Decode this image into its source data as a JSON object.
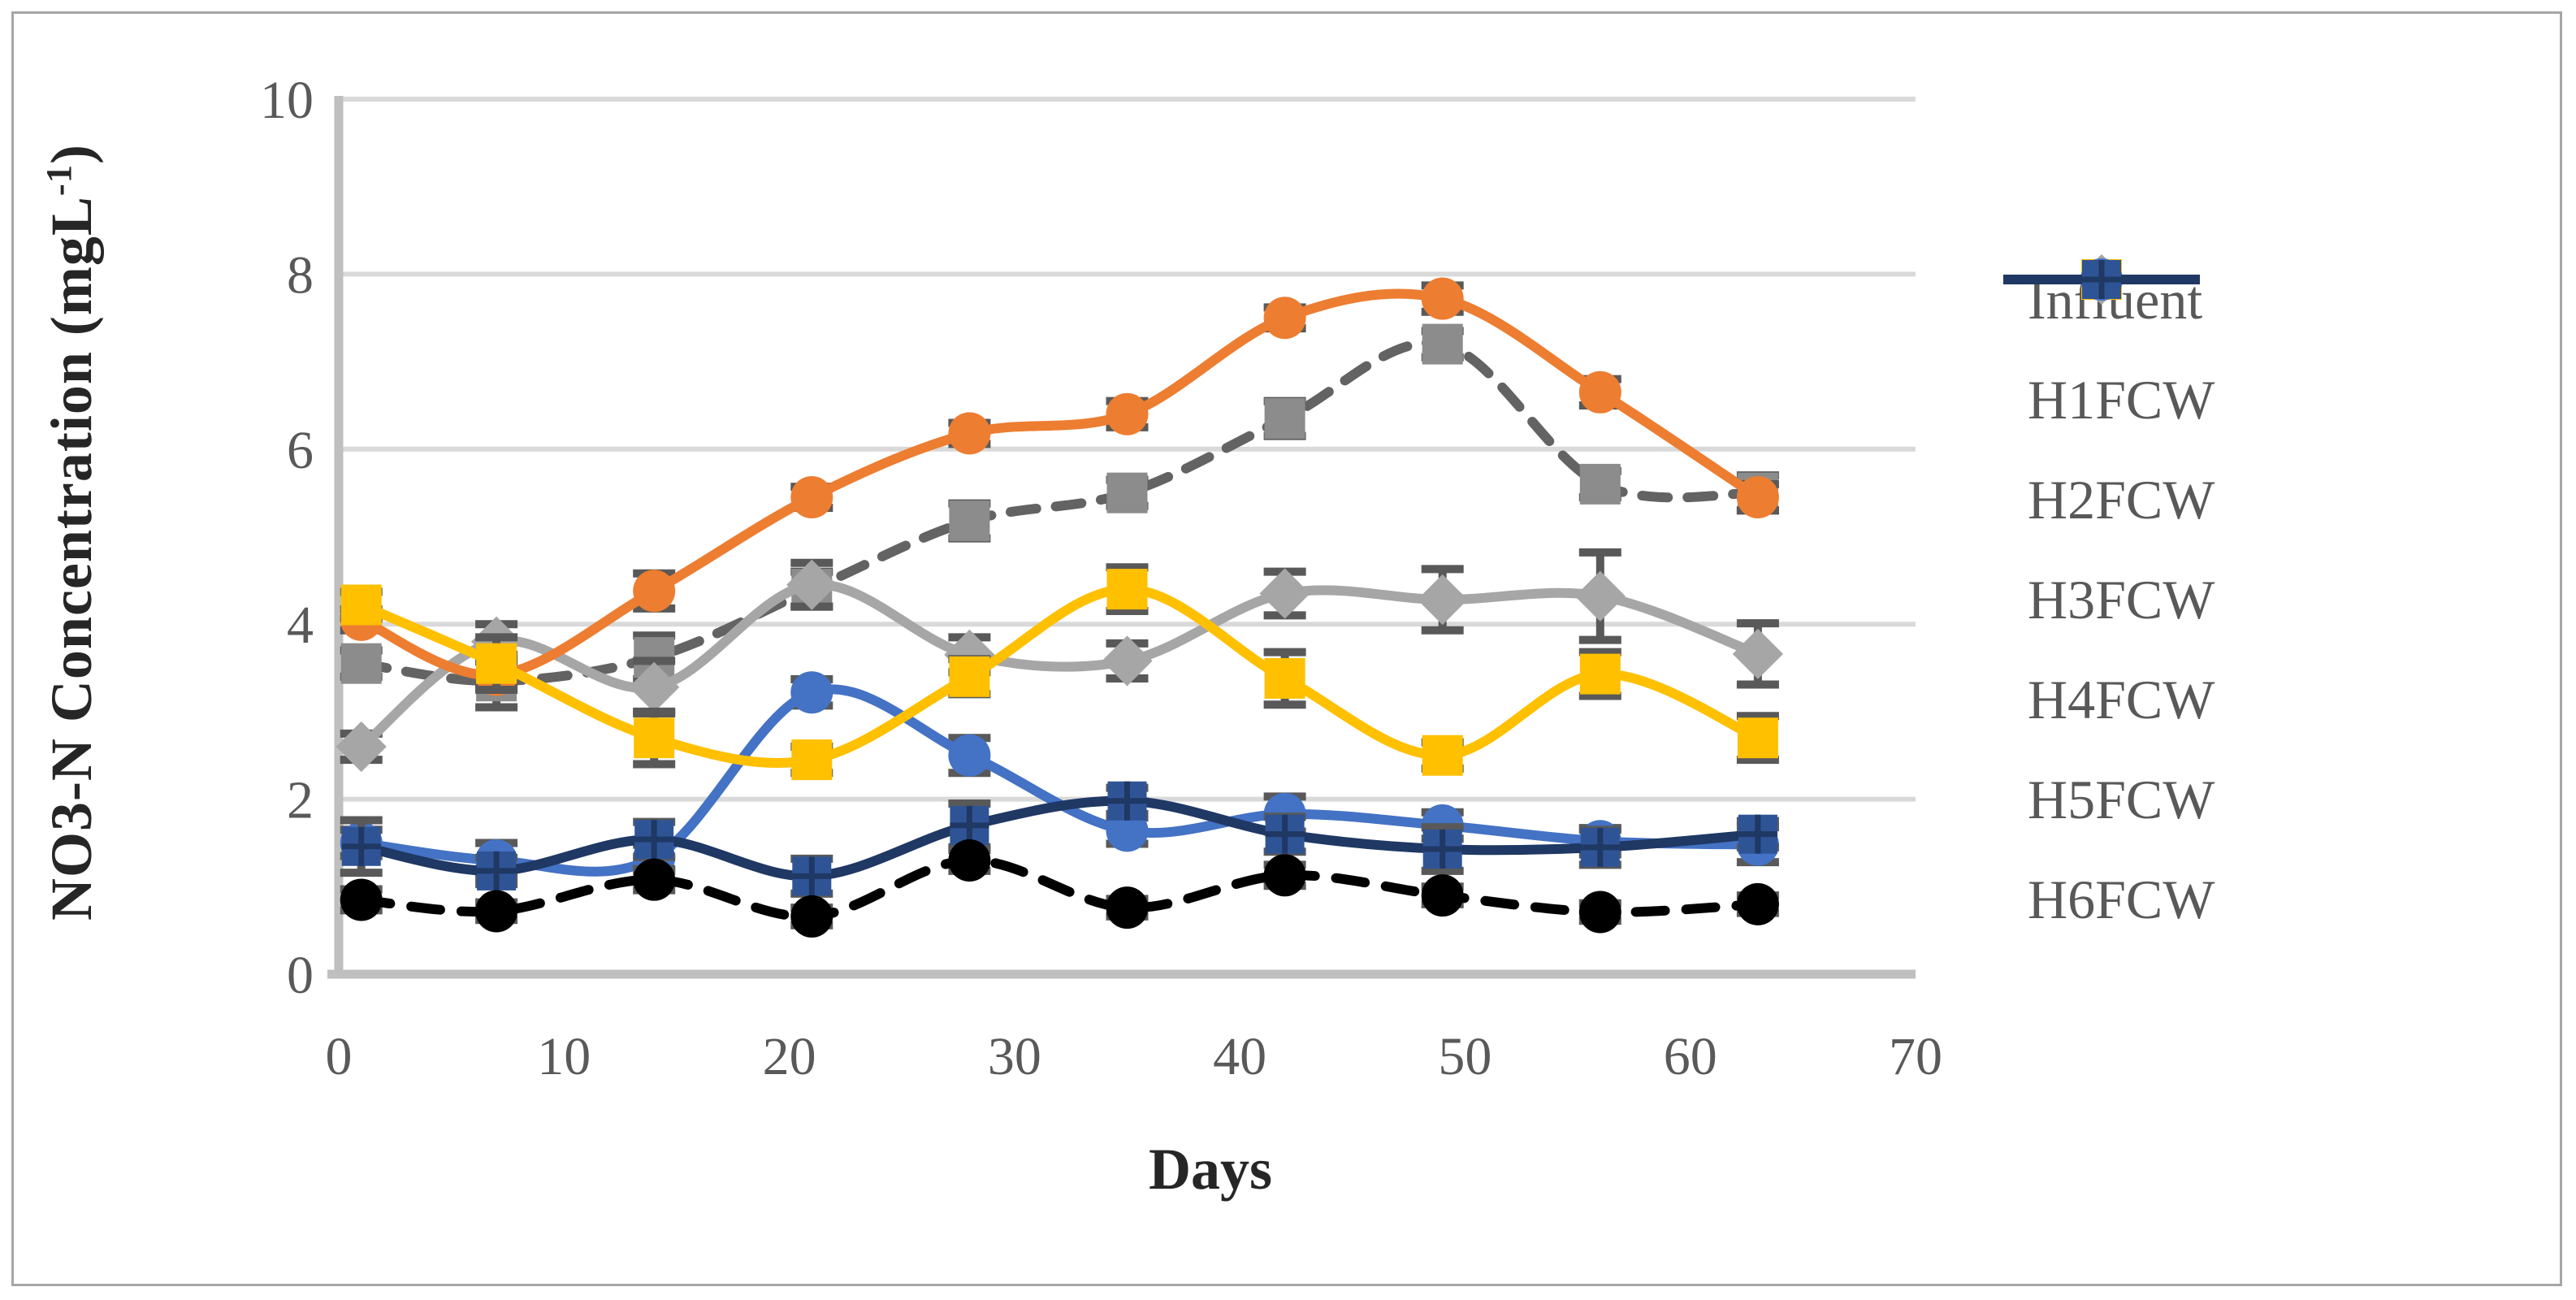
{
  "y_axis_title": {
    "main": "NO3-N Concentration (mgL",
    "sup": "-1",
    "end": ")"
  },
  "x_axis_title": "Days",
  "colors": {
    "grid": "#d9d9d9",
    "axis": "#bfbfbf",
    "error_bar": "#595959",
    "tick_text": "#595959",
    "legend_text": "#595959",
    "figure_border": "#a6a6a6",
    "background": "#ffffff"
  },
  "chart_data": {
    "type": "line",
    "title": "",
    "xlabel": "Days",
    "ylabel": "NO3-N Concentration (mgL-1)",
    "xlim": [
      0,
      70
    ],
    "ylim": [
      0,
      10
    ],
    "x_ticks": [
      0,
      10,
      20,
      30,
      40,
      50,
      60,
      70
    ],
    "y_ticks": [
      0,
      2,
      4,
      6,
      8,
      10
    ],
    "grid": "horizontal",
    "legend_position": "right",
    "x": [
      1,
      7,
      14,
      21,
      28,
      35,
      42,
      49,
      56,
      63
    ],
    "draw_order": [
      1,
      5,
      6,
      0,
      3,
      2,
      4
    ],
    "series": [
      {
        "name": "Influent",
        "color": "#000000",
        "marker_color": "#000000",
        "line_style": "dashed",
        "dash": "36 26",
        "marker": "circle",
        "values": [
          0.85,
          0.72,
          1.08,
          0.66,
          1.3,
          0.76,
          1.13,
          0.9,
          0.71,
          0.8
        ],
        "errors": [
          0.12,
          0.1,
          0.12,
          0.1,
          0.12,
          0.1,
          0.12,
          0.1,
          0.1,
          0.1
        ]
      },
      {
        "name": "H1FCW",
        "color": "#636363",
        "marker_color": "#8c8c8c",
        "line_style": "dashed",
        "dash": "32 24",
        "marker": "square",
        "values": [
          3.55,
          3.35,
          3.62,
          4.4,
          5.18,
          5.5,
          6.35,
          7.2,
          5.6,
          5.5
        ],
        "errors": [
          0.15,
          0.3,
          0.25,
          0.2,
          0.2,
          0.15,
          0.2,
          0.15,
          0.15,
          0.2
        ]
      },
      {
        "name": "H2FCW",
        "color": "#ed7d31",
        "marker_color": "#ed7d31",
        "line_style": "solid",
        "dash": "",
        "marker": "circle",
        "values": [
          4.05,
          3.42,
          4.38,
          5.45,
          6.18,
          6.4,
          7.5,
          7.72,
          6.65,
          5.45
        ],
        "errors": [
          0.12,
          0.15,
          0.2,
          0.12,
          0.12,
          0.15,
          0.12,
          0.15,
          0.15,
          0.15
        ]
      },
      {
        "name": "H3FCW",
        "color": "#a6a6a6",
        "marker_color": "#a6a6a6",
        "line_style": "solid",
        "dash": "",
        "marker": "diamond",
        "values": [
          2.6,
          3.8,
          3.28,
          4.45,
          3.65,
          3.58,
          4.35,
          4.28,
          4.32,
          3.66
        ],
        "errors": [
          0.15,
          0.2,
          0.3,
          0.25,
          0.2,
          0.2,
          0.25,
          0.35,
          0.5,
          0.35
        ]
      },
      {
        "name": "H4FCW",
        "color": "#ffc000",
        "marker_color": "#ffc000",
        "line_style": "solid",
        "dash": "",
        "marker": "square",
        "values": [
          4.22,
          3.55,
          2.7,
          2.45,
          3.4,
          4.4,
          3.38,
          2.5,
          3.43,
          2.7
        ],
        "errors": [
          0.15,
          0.3,
          0.3,
          0.15,
          0.2,
          0.25,
          0.3,
          0.15,
          0.25,
          0.25
        ]
      },
      {
        "name": "H5FCW",
        "color": "#4472c4",
        "marker_color": "#4472c4",
        "line_style": "solid",
        "dash": "",
        "marker": "circle",
        "values": [
          1.5,
          1.3,
          1.33,
          3.22,
          2.5,
          1.64,
          1.83,
          1.7,
          1.52,
          1.48
        ],
        "errors": [
          0.15,
          0.2,
          0.15,
          0.15,
          0.2,
          0.15,
          0.2,
          0.15,
          0.15,
          0.2
        ]
      },
      {
        "name": "H6FCW",
        "color": "#1f3864",
        "marker_color": "#2f5496",
        "line_style": "solid",
        "dash": "",
        "marker": "square-cross",
        "values": [
          1.46,
          1.18,
          1.54,
          1.12,
          1.7,
          1.98,
          1.6,
          1.43,
          1.45,
          1.6
        ],
        "errors": [
          0.3,
          0.15,
          0.2,
          0.2,
          0.25,
          0.15,
          0.2,
          0.25,
          0.2,
          0.15
        ]
      }
    ],
    "layout": {
      "plot_left": 417,
      "plot_right": 2358,
      "plot_bottom": 1199,
      "plot_top": 122,
      "tick_font_size": 66,
      "x_tick_baseline": 1322,
      "y_tick_right_edge": 386
    }
  }
}
